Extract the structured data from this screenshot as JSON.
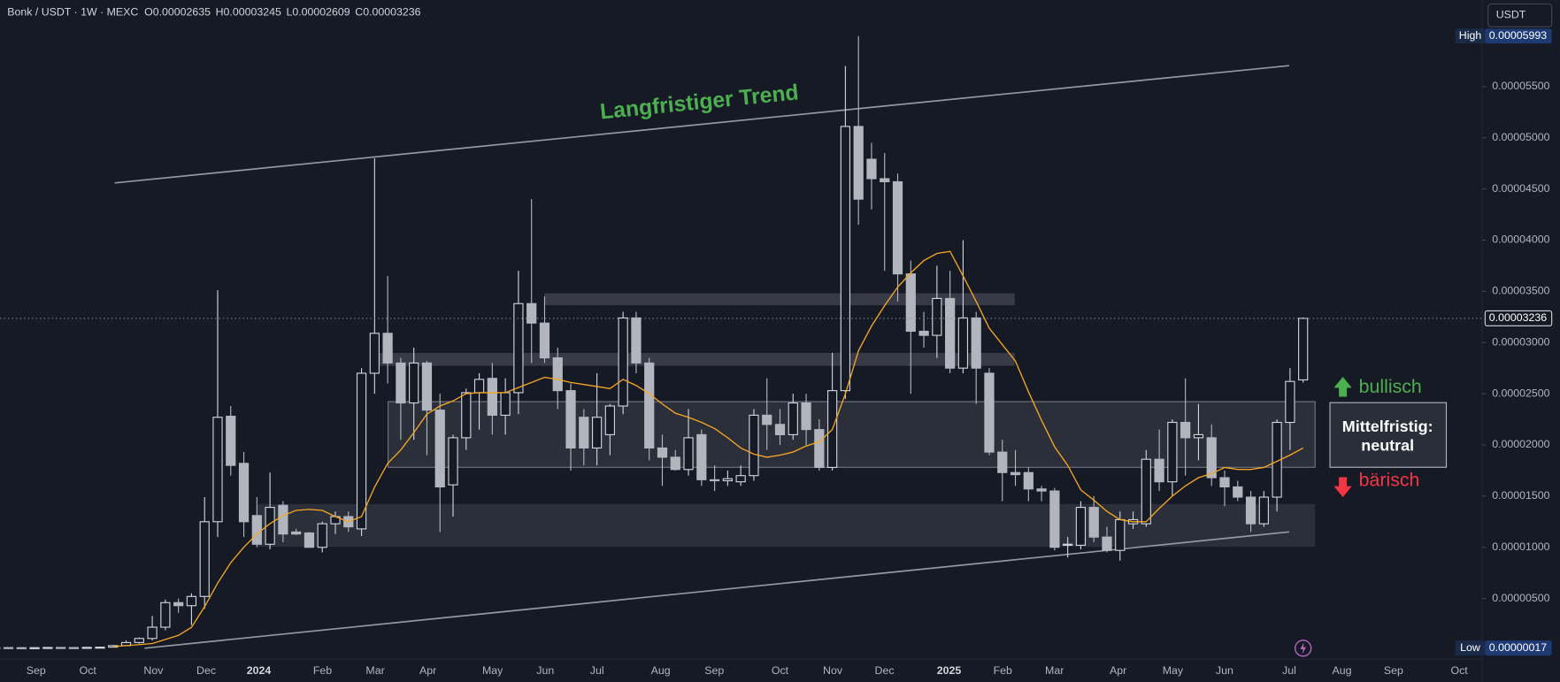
{
  "header": {
    "symbol": "Bonk / USDT · 1W · MEXC",
    "ohlc": [
      {
        "key": "O",
        "value": 2.635e-05
      },
      {
        "key": "H",
        "value": 3.245e-05
      },
      {
        "key": "L",
        "value": 2.609e-05
      },
      {
        "key": "C",
        "value": 3.236e-05
      }
    ]
  },
  "currency_button": "USDT",
  "chart_data": {
    "type": "candlestick",
    "up_color": "#d1d4dc",
    "down_color": "#b2b5be",
    "open": [
      2e-07,
      2.1e-07,
      2e-07,
      1.9e-07,
      2e-07,
      2.2e-07,
      2.1e-07,
      2e-07,
      2.3e-07,
      2.5e-07,
      4e-07,
      7e-07,
      1.1e-06,
      2.2e-06,
      4.6e-06,
      4.3e-06,
      5.2e-06,
      1.25e-05,
      2.28e-05,
      1.82e-05,
      1.31e-05,
      1.03e-05,
      1.41e-05,
      1.15e-05,
      1.14e-05,
      1e-05,
      1.23e-05,
      1.3e-05,
      1.18e-05,
      2.7e-05,
      3.09e-05,
      2.8e-05,
      2.41e-05,
      2.8e-05,
      2.34e-05,
      1.61e-05,
      2.07e-05,
      2.51e-05,
      2.65e-05,
      2.29e-05,
      2.51e-05,
      3.38e-05,
      3.19e-05,
      2.85e-05,
      2.53e-05,
      2.27e-05,
      1.97e-05,
      2.1e-05,
      2.38e-05,
      3.24e-05,
      2.8e-05,
      1.97e-05,
      1.88e-05,
      1.76e-05,
      2.1e-05,
      1.66e-05,
      1.65e-05,
      1.64e-05,
      1.7e-05,
      2.29e-05,
      2.2e-05,
      2.1e-05,
      2.41e-05,
      2.15e-05,
      1.78e-05,
      2.53e-05,
      5.11e-05,
      4.79e-05,
      4.6e-05,
      4.57e-05,
      3.67e-05,
      3.11e-05,
      3.07e-05,
      3.43e-05,
      2.75e-05,
      3.24e-05,
      2.7e-05,
      1.93e-05,
      1.73e-05,
      1.73e-05,
      1.57e-05,
      1.55e-05,
      1.02e-05,
      1.02e-05,
      1.39e-05,
      1.1e-05,
      9.7e-06,
      1.23e-05,
      1.23e-05,
      1.86e-05,
      1.64e-05,
      2.22e-05,
      2.07e-05,
      2.07e-05,
      1.68e-05,
      1.59e-05,
      1.49e-05,
      1.23e-05,
      1.49e-05,
      2.22e-05,
      2.635e-05
    ],
    "high": [
      2.4e-07,
      2.5e-07,
      2.3e-07,
      2.2e-07,
      2.4e-07,
      2.5e-07,
      2.4e-07,
      2.6e-07,
      3e-07,
      4.5e-07,
      9e-07,
      1.2e-06,
      3.3e-06,
      4.9e-06,
      5e-06,
      5.5e-06,
      1.49e-05,
      3.51e-05,
      2.38e-05,
      1.93e-05,
      1.49e-05,
      1.73e-05,
      1.45e-05,
      1.18e-05,
      1.15e-05,
      1.25e-05,
      1.35e-05,
      1.35e-05,
      2.75e-05,
      4.8e-05,
      3.65e-05,
      2.85e-05,
      2.95e-05,
      2.82e-05,
      2.5e-05,
      2.1e-05,
      2.55e-05,
      2.7e-05,
      2.8e-05,
      2.65e-05,
      3.7e-05,
      4.4e-05,
      3.45e-05,
      2.95e-05,
      2.6e-05,
      2.35e-05,
      2.7e-05,
      2.4e-05,
      3.3e-05,
      3.3e-05,
      2.85e-05,
      2.1e-05,
      1.95e-05,
      2.35e-05,
      2.15e-05,
      1.8e-05,
      1.75e-05,
      1.8e-05,
      2.35e-05,
      2.65e-05,
      2.35e-05,
      2.5e-05,
      2.5e-05,
      2.25e-05,
      2.9e-05,
      5.7e-05,
      5.993e-05,
      4.95e-05,
      4.85e-05,
      4.65e-05,
      3.8e-05,
      3.3e-05,
      3.75e-05,
      3.7e-05,
      4e-05,
      3.3e-05,
      2.75e-05,
      2.05e-05,
      1.95e-05,
      1.78e-05,
      1.6e-05,
      1.58e-05,
      1.1e-05,
      1.45e-05,
      1.5e-05,
      1.2e-05,
      1.35e-05,
      1.35e-05,
      1.95e-05,
      2.15e-05,
      2.25e-05,
      2.65e-05,
      2.4e-05,
      2.2e-05,
      1.75e-05,
      1.65e-05,
      1.55e-05,
      1.55e-05,
      2.25e-05,
      2.75e-05,
      3.245e-05
    ],
    "low": [
      1.7e-07,
      1.8e-07,
      1.7e-07,
      1.7e-07,
      1.8e-07,
      1.9e-07,
      1.8e-07,
      1.8e-07,
      2e-07,
      2.2e-07,
      3.5e-07,
      6e-07,
      9e-07,
      1.9e-06,
      3.6e-06,
      2.4e-06,
      4e-06,
      1.1e-05,
      1.7e-05,
      1.1e-05,
      1e-05,
      9.8e-06,
      1.05e-05,
      1.12e-05,
      1e-05,
      9.5e-06,
      1.13e-05,
      1.15e-05,
      1.11e-05,
      2.5e-05,
      2.6e-05,
      2.05e-05,
      2.05e-05,
      1.9e-05,
      1.15e-05,
      1.3e-05,
      1.95e-05,
      2.15e-05,
      2.1e-05,
      2.1e-05,
      2.3e-05,
      2.8e-05,
      2.8e-05,
      2.35e-05,
      1.75e-05,
      1.8e-05,
      1.8e-05,
      1.9e-05,
      2.3e-05,
      2.7e-05,
      1.85e-05,
      1.6e-05,
      1.75e-05,
      1.7e-05,
      1.6e-05,
      1.55e-05,
      1.6e-05,
      1.6e-05,
      1.65e-05,
      1.95e-05,
      2e-05,
      2.05e-05,
      2e-05,
      1.75e-05,
      1.75e-05,
      2.45e-05,
      4.15e-05,
      4.3e-05,
      3.7e-05,
      3.4e-05,
      2.5e-05,
      2.95e-05,
      2.85e-05,
      2.7e-05,
      2.7e-05,
      2.4e-05,
      1.9e-05,
      1.45e-05,
      1.6e-05,
      1.45e-05,
      1.45e-05,
      9.7e-06,
      9e-06,
      9.8e-06,
      1.05e-05,
      9.5e-06,
      8.7e-06,
      1.18e-05,
      1.2e-05,
      1.55e-05,
      1.5e-05,
      1.7e-05,
      1.85e-05,
      1.6e-05,
      1.4e-05,
      1.45e-05,
      1.15e-05,
      1.2e-05,
      1.35e-05,
      1.95e-05,
      2.609e-05
    ],
    "close": [
      2.1e-07,
      2e-07,
      1.9e-07,
      2e-07,
      2.2e-07,
      2.1e-07,
      2e-07,
      2.3e-07,
      2.5e-07,
      4e-07,
      7e-07,
      1.1e-06,
      2.2e-06,
      4.6e-06,
      4.3e-06,
      5.2e-06,
      1.25e-05,
      2.27e-05,
      1.8e-05,
      1.25e-05,
      1.03e-05,
      1.39e-05,
      1.13e-05,
      1.13e-05,
      1e-05,
      1.23e-05,
      1.3e-05,
      1.2e-05,
      2.7e-05,
      3.09e-05,
      2.8e-05,
      2.41e-05,
      2.8e-05,
      2.34e-05,
      1.59e-05,
      2.07e-05,
      2.51e-05,
      2.64e-05,
      2.29e-05,
      2.51e-05,
      3.38e-05,
      3.19e-05,
      2.85e-05,
      2.53e-05,
      1.97e-05,
      1.97e-05,
      2.27e-05,
      2.38e-05,
      3.24e-05,
      2.8e-05,
      1.97e-05,
      1.88e-05,
      1.76e-05,
      2.07e-05,
      1.66e-05,
      1.65e-05,
      1.67e-05,
      1.7e-05,
      2.29e-05,
      2.2e-05,
      2.1e-05,
      2.41e-05,
      2.15e-05,
      1.78e-05,
      2.53e-05,
      5.11e-05,
      4.4e-05,
      4.6e-05,
      4.57e-05,
      3.67e-05,
      3.11e-05,
      3.07e-05,
      3.43e-05,
      2.75e-05,
      3.24e-05,
      2.75e-05,
      1.93e-05,
      1.73e-05,
      1.71e-05,
      1.57e-05,
      1.55e-05,
      1e-05,
      1.03e-05,
      1.39e-05,
      1.1e-05,
      9.7e-06,
      1.27e-05,
      1.27e-05,
      1.86e-05,
      1.64e-05,
      2.22e-05,
      2.07e-05,
      2.1e-05,
      1.68e-05,
      1.59e-05,
      1.49e-05,
      1.23e-05,
      1.49e-05,
      2.22e-05,
      2.62e-05,
      3.236e-05
    ],
    "moving_average": {
      "color": "#f5a623",
      "values": [
        null,
        null,
        null,
        null,
        null,
        null,
        null,
        null,
        null,
        3e-07,
        4e-07,
        5e-07,
        6e-07,
        1e-06,
        1.4e-06,
        2.2e-06,
        4.2e-06,
        6.5e-06,
        8.5e-06,
        1e-05,
        1.13e-05,
        1.23e-05,
        1.31e-05,
        1.36e-05,
        1.37e-05,
        1.36e-05,
        1.3e-05,
        1.25e-05,
        1.3e-05,
        1.59e-05,
        1.82e-05,
        1.95e-05,
        2.12e-05,
        2.3e-05,
        2.38e-05,
        2.43e-05,
        2.5e-05,
        2.51e-05,
        2.51e-05,
        2.51e-05,
        2.56e-05,
        2.61e-05,
        2.66e-05,
        2.64e-05,
        2.61e-05,
        2.59e-05,
        2.57e-05,
        2.55e-05,
        2.64e-05,
        2.58e-05,
        2.5e-05,
        2.4e-05,
        2.31e-05,
        2.27e-05,
        2.22e-05,
        2.16e-05,
        2.07e-05,
        1.97e-05,
        1.91e-05,
        1.88e-05,
        1.9e-05,
        1.93e-05,
        1.99e-05,
        2.03e-05,
        2.15e-05,
        2.5e-05,
        2.92e-05,
        3.16e-05,
        3.36e-05,
        3.54e-05,
        3.68e-05,
        3.8e-05,
        3.87e-05,
        3.89e-05,
        3.65e-05,
        3.4e-05,
        3.14e-05,
        2.98e-05,
        2.82e-05,
        2.52e-05,
        2.24e-05,
        1.98e-05,
        1.8e-05,
        1.56e-05,
        1.46e-05,
        1.35e-05,
        1.27e-05,
        1.25e-05,
        1.25e-05,
        1.38e-05,
        1.5e-05,
        1.6e-05,
        1.68e-05,
        1.72e-05,
        1.78e-05,
        1.76e-05,
        1.76e-05,
        1.78e-05,
        1.84e-05,
        1.9e-05,
        1.97e-05
      ]
    },
    "ylim": [
      -9.2e-07,
      6.345e-05
    ],
    "yticks": [
      {
        "value": 5e-06,
        "label": "0.00000500"
      },
      {
        "value": 1e-05,
        "label": "0.00001000"
      },
      {
        "value": 1.5e-05,
        "label": "0.00001500"
      },
      {
        "value": 2e-05,
        "label": "0.00002000"
      },
      {
        "value": 2.5e-05,
        "label": "0.00002500"
      },
      {
        "value": 3e-05,
        "label": "0.00003000"
      },
      {
        "value": 3.5e-05,
        "label": "0.00003500"
      },
      {
        "value": 4e-05,
        "label": "0.00004000"
      },
      {
        "value": 4.5e-05,
        "label": "0.00004500"
      },
      {
        "value": 5e-05,
        "label": "0.00005000"
      },
      {
        "value": 5.5e-05,
        "label": "0.00005500"
      }
    ],
    "x_axis_labels": [
      "Sep",
      "Oct",
      "Nov",
      "Dec",
      "2024",
      "Feb",
      "Mar",
      "Apr",
      "May",
      "Jun",
      "Jul",
      "Aug",
      "Sep",
      "Oct",
      "Nov",
      "Dec",
      "2025",
      "Feb",
      "Mar",
      "Apr",
      "May",
      "Jun",
      "Jul",
      "Aug",
      "Sep",
      "Oct"
    ],
    "high_marker": {
      "name": "High",
      "value": 5.993e-05,
      "label": "0.00005993"
    },
    "low_marker": {
      "name": "Low",
      "value": 1.7e-07,
      "label": "0.00000017"
    },
    "last_price": {
      "value": 3.236e-05,
      "label": "0.00003236"
    },
    "annotations": {
      "trend": "Langfristiger Trend",
      "bullish": "bullisch",
      "bearish": "bärisch",
      "box": [
        "Mittelfristig:",
        "neutral"
      ]
    }
  }
}
